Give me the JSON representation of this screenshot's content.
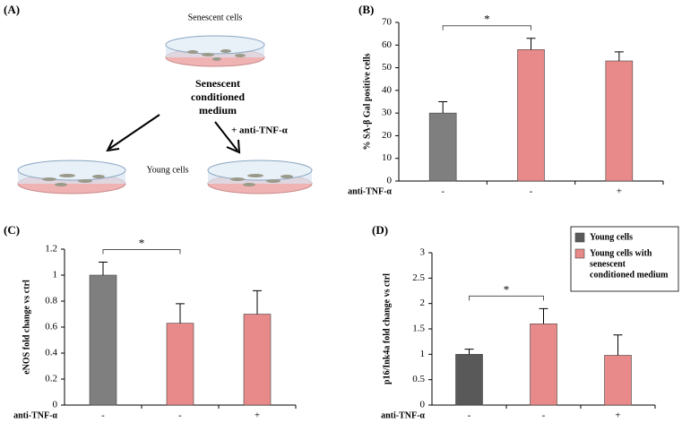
{
  "panel_labels": [
    "(A)",
    "(B)",
    "(C)",
    "(D)"
  ],
  "diagram": {
    "top_dish": "Senescent cells",
    "medium_lines": [
      "Senescent",
      "conditioned",
      "medium"
    ],
    "treatment": "+ anti-TNF-α",
    "bottom_dish": "Young cells"
  },
  "chart_data": [
    {
      "type": "bar",
      "ylabel": "% SA-β Gal positive cells",
      "row_label": "anti-TNF-α",
      "categories": [
        "-",
        "-",
        "+"
      ],
      "values": [
        30,
        58,
        53
      ],
      "errors": [
        5,
        5,
        4
      ],
      "colors": [
        "#7f7f7f",
        "#e8898a",
        "#e8898a"
      ],
      "annotation": "*",
      "ylim": [
        0,
        70
      ],
      "yticks": [
        0,
        10,
        20,
        30,
        40,
        50,
        60,
        70
      ]
    },
    {
      "type": "bar",
      "ylabel": "eNOS fold change vs ctrl",
      "row_label": "anti-TNF-α",
      "categories": [
        "-",
        "-",
        "+"
      ],
      "values": [
        1.0,
        0.63,
        0.7
      ],
      "errors": [
        0.1,
        0.15,
        0.18
      ],
      "colors": [
        "#7f7f7f",
        "#e8898a",
        "#e8898a"
      ],
      "annotation": "*",
      "ylim": [
        0,
        1.2
      ],
      "yticks": [
        0,
        0.2,
        0.4,
        0.6,
        0.8,
        1,
        1.2
      ]
    },
    {
      "type": "bar",
      "ylabel": "p16/Ink4a fold change vs ctrl",
      "row_label": "anti-TNF-α",
      "categories": [
        "-",
        "-",
        "+"
      ],
      "values": [
        1.0,
        1.6,
        0.98
      ],
      "errors": [
        0.1,
        0.3,
        0.4
      ],
      "colors": [
        "#595959",
        "#e8898a",
        "#e8898a"
      ],
      "annotation": "*",
      "ylim": [
        0,
        3
      ],
      "yticks": [
        0,
        0.5,
        1,
        1.5,
        2,
        2.5,
        3
      ],
      "legend": [
        {
          "name_lines": [
            "Young cells"
          ],
          "color": "#595959"
        },
        {
          "name_lines": [
            "Young cells with",
            "senescent",
            "conditioned medium"
          ],
          "color": "#e8898a"
        }
      ]
    }
  ]
}
